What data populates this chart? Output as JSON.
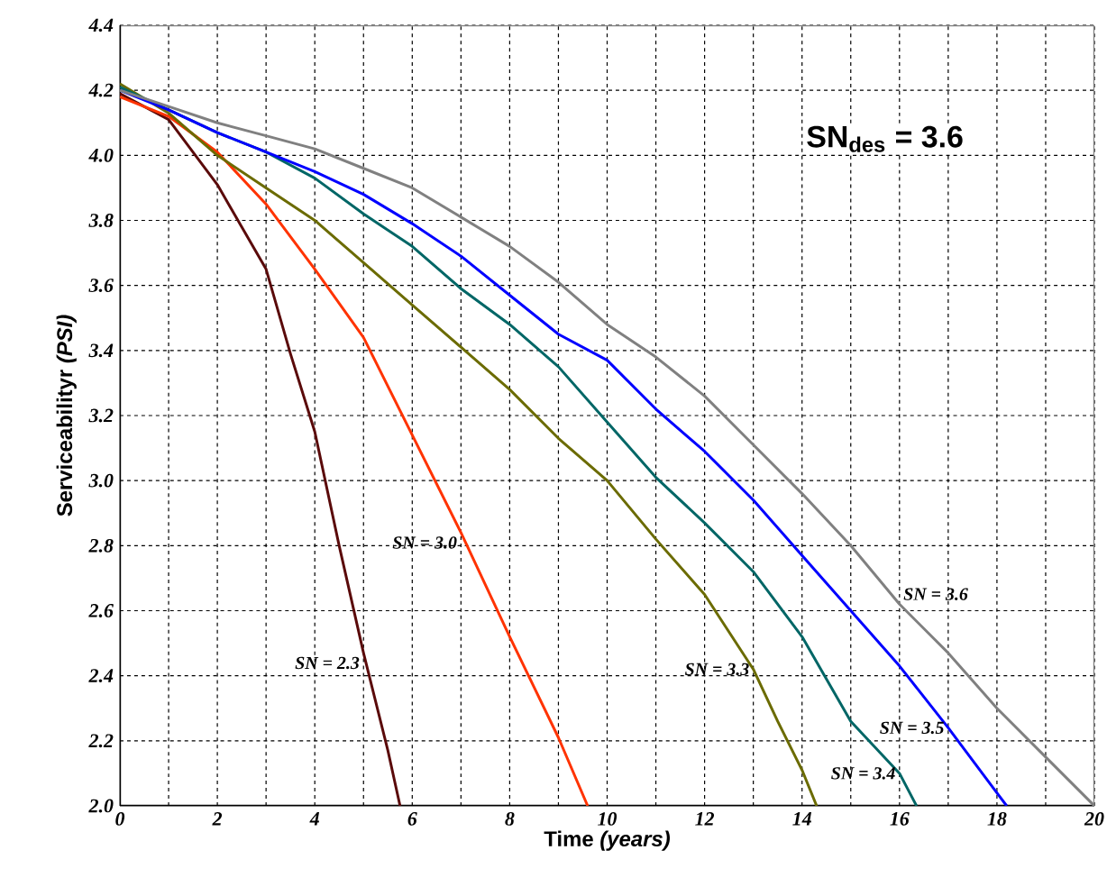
{
  "chart_data": {
    "type": "line",
    "xlabel": "Time *(years)*",
    "ylabel": "Serviceabilityr *(PSI)*",
    "annotations": [
      "**SN$_{des}$ = 3.6**"
    ],
    "series": [
      {
        "name": "SN = 2.3",
        "color": "#5a0a0a",
        "x": [
          0,
          1,
          2,
          3,
          3.5,
          4,
          4.5,
          5,
          5.5,
          5.75
        ],
        "values": [
          4.19,
          4.11,
          3.91,
          3.65,
          3.39,
          3.15,
          2.8,
          2.47,
          2.17,
          2.0
        ]
      },
      {
        "name": "SN = 3.0",
        "color": "#ff3300",
        "x": [
          0,
          1,
          2,
          3,
          4,
          5,
          6,
          7,
          8,
          9,
          9.6
        ],
        "values": [
          4.18,
          4.12,
          4.01,
          3.85,
          3.65,
          3.44,
          3.14,
          2.84,
          2.52,
          2.21,
          2.0
        ]
      },
      {
        "name": "SN = 3.3",
        "color": "#6b6b00",
        "x": [
          0,
          1,
          2,
          3,
          4,
          5,
          6,
          7,
          8,
          9,
          10,
          11,
          12,
          13,
          13.5,
          14,
          14.3
        ],
        "values": [
          4.22,
          4.13,
          4.0,
          3.9,
          3.8,
          3.67,
          3.54,
          3.41,
          3.28,
          3.13,
          3.0,
          2.82,
          2.65,
          2.42,
          2.26,
          2.11,
          2.0
        ]
      },
      {
        "name": "SN = 3.4",
        "color": "#006666",
        "x": [
          0,
          1,
          2,
          3,
          4,
          5,
          6,
          7,
          8,
          9,
          10,
          11,
          12,
          13,
          14,
          15,
          16,
          16.35
        ],
        "values": [
          4.21,
          4.14,
          4.07,
          4.01,
          3.93,
          3.82,
          3.72,
          3.59,
          3.48,
          3.35,
          3.18,
          3.01,
          2.87,
          2.72,
          2.52,
          2.26,
          2.1,
          2.0
        ]
      },
      {
        "name": "SN = 3.5",
        "color": "#0000ff",
        "x": [
          0,
          1,
          2,
          3,
          4,
          5,
          6,
          7,
          8,
          9,
          10,
          11,
          12,
          13,
          14,
          15,
          16,
          17,
          18,
          18.2
        ],
        "values": [
          4.2,
          4.14,
          4.07,
          4.01,
          3.95,
          3.88,
          3.79,
          3.69,
          3.57,
          3.45,
          3.37,
          3.22,
          3.09,
          2.94,
          2.77,
          2.6,
          2.43,
          2.24,
          2.04,
          2.0
        ]
      },
      {
        "name": "SN = 3.6",
        "color": "#808080",
        "x": [
          0,
          1,
          2,
          3,
          4,
          5,
          6,
          7,
          8,
          9,
          10,
          11,
          12,
          13,
          14,
          15,
          16,
          17,
          18,
          19,
          20
        ],
        "values": [
          4.2,
          4.15,
          4.1,
          4.06,
          4.02,
          3.96,
          3.9,
          3.81,
          3.72,
          3.61,
          3.48,
          3.38,
          3.26,
          3.11,
          2.96,
          2.8,
          2.62,
          2.47,
          2.3,
          2.15,
          2.0
        ]
      }
    ],
    "xlim": [
      0,
      20
    ],
    "ylim": [
      2.0,
      4.4
    ],
    "xticks": [
      0,
      {
        "value": 1,
        "label": null
      },
      2,
      {
        "value": 3,
        "label": null
      },
      4,
      {
        "value": 5,
        "label": null
      },
      6,
      {
        "value": 7,
        "label": null
      },
      8,
      {
        "value": 9,
        "label": null
      },
      10,
      {
        "value": 11,
        "label": null
      },
      12,
      {
        "value": 13,
        "label": null
      },
      14,
      {
        "value": 15,
        "label": null
      },
      16,
      {
        "value": 17,
        "label": null
      },
      18,
      {
        "value": 19,
        "label": null
      },
      20
    ],
    "yticks": [
      {
        "value": 2,
        "label": "2.0"
      },
      {
        "value": 2.2,
        "label": "2.2"
      },
      {
        "value": 2.4,
        "label": "2.4"
      },
      {
        "value": 2.6,
        "label": "2.6"
      },
      {
        "value": 2.8,
        "label": "2.8"
      },
      {
        "value": 3,
        "label": "3.0"
      },
      {
        "value": 3.2,
        "label": "3.2"
      },
      {
        "value": 3.4,
        "label": "3.4"
      },
      {
        "value": 3.6,
        "label": "3.6"
      },
      {
        "value": 3.8,
        "label": "3.8"
      },
      {
        "value": 4,
        "label": "4.0"
      },
      {
        "value": 4.2,
        "label": "4.2"
      },
      {
        "value": 4.4,
        "label": "4.4"
      }
    ],
    "grid": true,
    "marker": "none",
    "line_style": "solid"
  }
}
